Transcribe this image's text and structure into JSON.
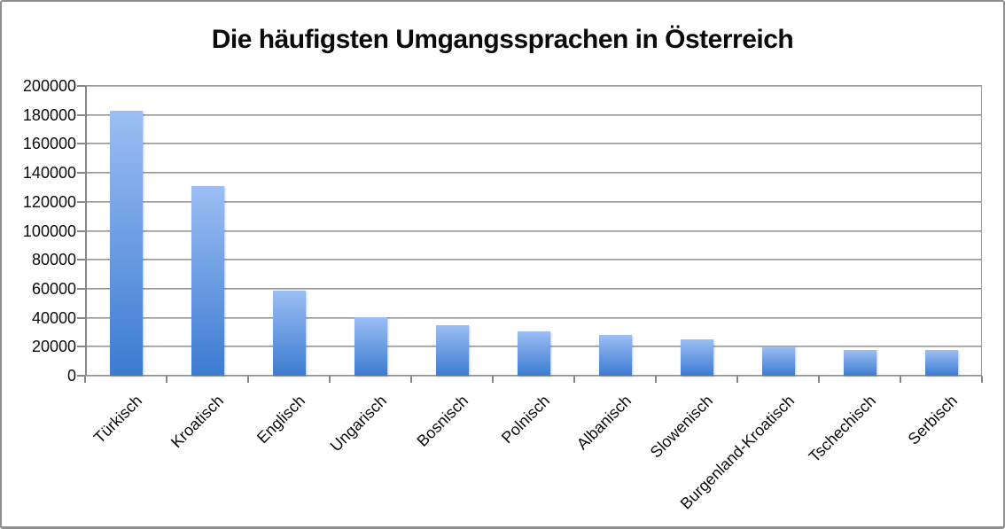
{
  "title": "Die häufigsten Umgangssprachen in Österreich",
  "chart_data": {
    "type": "bar",
    "title": "Die häufigsten Umgangssprachen in Österreich",
    "categories": [
      "Türkisch",
      "Kroatisch",
      "Englisch",
      "Ungarisch",
      "Bosnisch",
      "Polnisch",
      "Albanisch",
      "Slowenisch",
      "Burgenland-Kroatisch",
      "Tschechisch",
      "Serbisch"
    ],
    "values": [
      183000,
      131000,
      58500,
      40500,
      35000,
      30500,
      28000,
      25000,
      20000,
      17500,
      17500
    ],
    "xlabel": "",
    "ylabel": "",
    "ylim": [
      0,
      200000
    ],
    "ytick_step": 20000,
    "y_tick_labels": [
      "0",
      "20000",
      "40000",
      "60000",
      "80000",
      "100000",
      "120000",
      "140000",
      "160000",
      "180000",
      "200000"
    ],
    "grid": true,
    "legend": false,
    "colors": {
      "bar_gradient_top": "#9cbef4",
      "bar_gradient_bottom": "#3c7bd1",
      "gridline": "#8a8a8a",
      "axis": "#878787",
      "text": "#0a0a0a",
      "background": "#ffffff",
      "frame_border": "#8f8f8f"
    }
  }
}
